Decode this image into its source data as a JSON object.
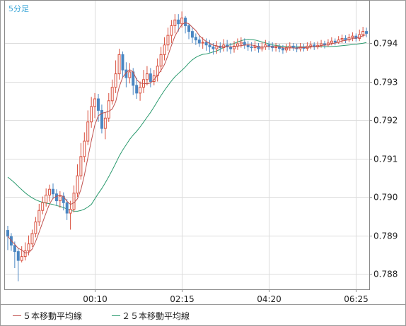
{
  "chart_data": {
    "type": "candlestick",
    "timeframe_label": "5分足",
    "y_tick_labels": [
      "0.794",
      "0.793",
      "0.792",
      "0.791",
      "0.790",
      "0.789",
      "0.788"
    ],
    "y_ticks": [
      0.794,
      0.793,
      0.792,
      0.791,
      0.79,
      0.789,
      0.788
    ],
    "ylim": [
      0.7876,
      0.7951
    ],
    "x_tick_labels": [
      "00:10",
      "02:15",
      "04:20",
      "06:25"
    ],
    "x_tick_index": [
      25,
      50,
      75,
      100
    ],
    "x_count": 104,
    "grid": true,
    "colors": {
      "up_candle": "#d94f3d",
      "down_candle": "#4a86c2",
      "ma5": "#c0504d",
      "ma25": "#2a9a6e",
      "grid": "#dcdcdc",
      "frame": "#8a8a8a"
    },
    "legend": [
      {
        "key": "ma5",
        "label": "５本移動平均線",
        "color": "#c0504d"
      },
      {
        "key": "ma25",
        "label": "２５本移動平均線",
        "color": "#2a9a6e"
      }
    ],
    "candles": [
      [
        0.78913,
        0.78898,
        0.78925,
        0.78862
      ],
      [
        0.78897,
        0.78875,
        0.78906,
        0.7886
      ],
      [
        0.78874,
        0.78858,
        0.78884,
        0.78815
      ],
      [
        0.78858,
        0.78835,
        0.78867,
        0.78781
      ],
      [
        0.78835,
        0.78845,
        0.78872,
        0.7883
      ],
      [
        0.78845,
        0.7886,
        0.78882,
        0.78835
      ],
      [
        0.7886,
        0.78878,
        0.789,
        0.78848
      ],
      [
        0.78878,
        0.78905,
        0.78915,
        0.7887
      ],
      [
        0.78905,
        0.78935,
        0.78948,
        0.78895
      ],
      [
        0.78935,
        0.78965,
        0.78982,
        0.78925
      ],
      [
        0.78965,
        0.78985,
        0.79001,
        0.78955
      ],
      [
        0.78985,
        0.79005,
        0.79022,
        0.78975
      ],
      [
        0.79005,
        0.7902,
        0.79032,
        0.78988
      ],
      [
        0.7902,
        0.79008,
        0.79035,
        0.78995
      ],
      [
        0.79008,
        0.7899,
        0.7902,
        0.78978
      ],
      [
        0.7899,
        0.79002,
        0.79015,
        0.78972
      ],
      [
        0.79002,
        0.78985,
        0.79012,
        0.78965
      ],
      [
        0.78985,
        0.78958,
        0.78995,
        0.7894
      ],
      [
        0.78958,
        0.78968,
        0.7899,
        0.78915
      ],
      [
        0.78968,
        0.7901,
        0.7903,
        0.7896
      ],
      [
        0.7901,
        0.79055,
        0.79085,
        0.79
      ],
      [
        0.79055,
        0.79105,
        0.7914,
        0.79045
      ],
      [
        0.79105,
        0.79145,
        0.79168,
        0.7909
      ],
      [
        0.79145,
        0.79195,
        0.79225,
        0.79135
      ],
      [
        0.79195,
        0.79235,
        0.7926,
        0.7918
      ],
      [
        0.79235,
        0.79255,
        0.7927,
        0.79205
      ],
      [
        0.79255,
        0.79225,
        0.79268,
        0.79195
      ],
      [
        0.79225,
        0.79178,
        0.7924,
        0.79165
      ],
      [
        0.79178,
        0.79205,
        0.7922,
        0.7915
      ],
      [
        0.79205,
        0.7925,
        0.7927,
        0.79195
      ],
      [
        0.7925,
        0.79285,
        0.79305,
        0.7924
      ],
      [
        0.79285,
        0.7932,
        0.79355,
        0.7927
      ],
      [
        0.7932,
        0.7937,
        0.79385,
        0.79305
      ],
      [
        0.7937,
        0.7933,
        0.79378,
        0.7931
      ],
      [
        0.7933,
        0.7931,
        0.7935,
        0.79285
      ],
      [
        0.7931,
        0.79325,
        0.79348,
        0.79295
      ],
      [
        0.79325,
        0.7929,
        0.79335,
        0.79265
      ],
      [
        0.7929,
        0.7927,
        0.7931,
        0.79255
      ],
      [
        0.7927,
        0.79285,
        0.793,
        0.7925
      ],
      [
        0.79285,
        0.79305,
        0.7933,
        0.7927
      ],
      [
        0.79305,
        0.7932,
        0.7934,
        0.7929
      ],
      [
        0.7932,
        0.793,
        0.79335,
        0.79285
      ],
      [
        0.793,
        0.79315,
        0.7933,
        0.7929
      ],
      [
        0.79315,
        0.7934,
        0.7936,
        0.793
      ],
      [
        0.7934,
        0.7937,
        0.7939,
        0.79325
      ],
      [
        0.7937,
        0.79395,
        0.79415,
        0.79355
      ],
      [
        0.79395,
        0.7942,
        0.7944,
        0.7938
      ],
      [
        0.7942,
        0.79445,
        0.7946,
        0.794
      ],
      [
        0.79445,
        0.7946,
        0.79475,
        0.79425
      ],
      [
        0.7946,
        0.7945,
        0.79475,
        0.7943
      ],
      [
        0.7945,
        0.79465,
        0.79482,
        0.7944
      ],
      [
        0.79465,
        0.79445,
        0.7947,
        0.79425
      ],
      [
        0.79445,
        0.7943,
        0.7945,
        0.7941
      ],
      [
        0.7943,
        0.79415,
        0.7944,
        0.794
      ],
      [
        0.79415,
        0.79408,
        0.79425,
        0.79395
      ],
      [
        0.79408,
        0.794,
        0.7942,
        0.7939
      ],
      [
        0.794,
        0.79402,
        0.79415,
        0.79385
      ],
      [
        0.79402,
        0.79395,
        0.79412,
        0.7938
      ],
      [
        0.79395,
        0.7939,
        0.79408,
        0.79375
      ],
      [
        0.7939,
        0.79385,
        0.794,
        0.7937
      ],
      [
        0.79385,
        0.79392,
        0.79405,
        0.79372
      ],
      [
        0.79392,
        0.79388,
        0.79402,
        0.79375
      ],
      [
        0.79388,
        0.79395,
        0.7941,
        0.79378
      ],
      [
        0.79395,
        0.7939,
        0.79408,
        0.79378
      ],
      [
        0.7939,
        0.79385,
        0.794,
        0.79372
      ],
      [
        0.79385,
        0.79392,
        0.79405,
        0.79375
      ],
      [
        0.79392,
        0.79398,
        0.79412,
        0.79382
      ],
      [
        0.79398,
        0.79402,
        0.79415,
        0.79388
      ],
      [
        0.79402,
        0.79395,
        0.79412,
        0.79385
      ],
      [
        0.79395,
        0.7939,
        0.79405,
        0.7938
      ],
      [
        0.7939,
        0.79388,
        0.79402,
        0.79378
      ],
      [
        0.79388,
        0.79392,
        0.79405,
        0.7938
      ],
      [
        0.79392,
        0.79385,
        0.794,
        0.79375
      ],
      [
        0.79385,
        0.7939,
        0.79402,
        0.79378
      ],
      [
        0.7939,
        0.79395,
        0.79408,
        0.79382
      ],
      [
        0.79395,
        0.79392,
        0.79405,
        0.79382
      ],
      [
        0.79392,
        0.79388,
        0.79402,
        0.79378
      ],
      [
        0.79388,
        0.7939,
        0.794,
        0.79378
      ],
      [
        0.7939,
        0.79386,
        0.79398,
        0.79376
      ],
      [
        0.79386,
        0.79382,
        0.79395,
        0.79372
      ],
      [
        0.79382,
        0.79388,
        0.79398,
        0.79375
      ],
      [
        0.79388,
        0.79392,
        0.79402,
        0.7938
      ],
      [
        0.79392,
        0.79388,
        0.794,
        0.7938
      ],
      [
        0.79388,
        0.79385,
        0.79398,
        0.79376
      ],
      [
        0.79385,
        0.7939,
        0.794,
        0.79378
      ],
      [
        0.7939,
        0.79386,
        0.79398,
        0.79378
      ],
      [
        0.79386,
        0.79392,
        0.79402,
        0.7938
      ],
      [
        0.79392,
        0.79395,
        0.79405,
        0.79384
      ],
      [
        0.79395,
        0.7939,
        0.79402,
        0.79382
      ],
      [
        0.7939,
        0.79394,
        0.79404,
        0.79384
      ],
      [
        0.79394,
        0.79398,
        0.79408,
        0.79388
      ],
      [
        0.79398,
        0.79395,
        0.79406,
        0.79386
      ],
      [
        0.79395,
        0.794,
        0.7941,
        0.7939
      ],
      [
        0.794,
        0.79405,
        0.79415,
        0.79394
      ],
      [
        0.79405,
        0.79402,
        0.79412,
        0.79394
      ],
      [
        0.79402,
        0.79408,
        0.79418,
        0.79398
      ],
      [
        0.79408,
        0.79412,
        0.79422,
        0.794
      ],
      [
        0.79412,
        0.79408,
        0.7942,
        0.794
      ],
      [
        0.79408,
        0.79414,
        0.79424,
        0.79402
      ],
      [
        0.79414,
        0.79418,
        0.79428,
        0.79405
      ],
      [
        0.79418,
        0.79412,
        0.79425,
        0.79404
      ],
      [
        0.79412,
        0.79422,
        0.79435,
        0.79405
      ],
      [
        0.79422,
        0.7943,
        0.79442,
        0.79415
      ],
      [
        0.7943,
        0.79425,
        0.7944,
        0.79415
      ]
    ],
    "ma25_start": 0.79058
  }
}
